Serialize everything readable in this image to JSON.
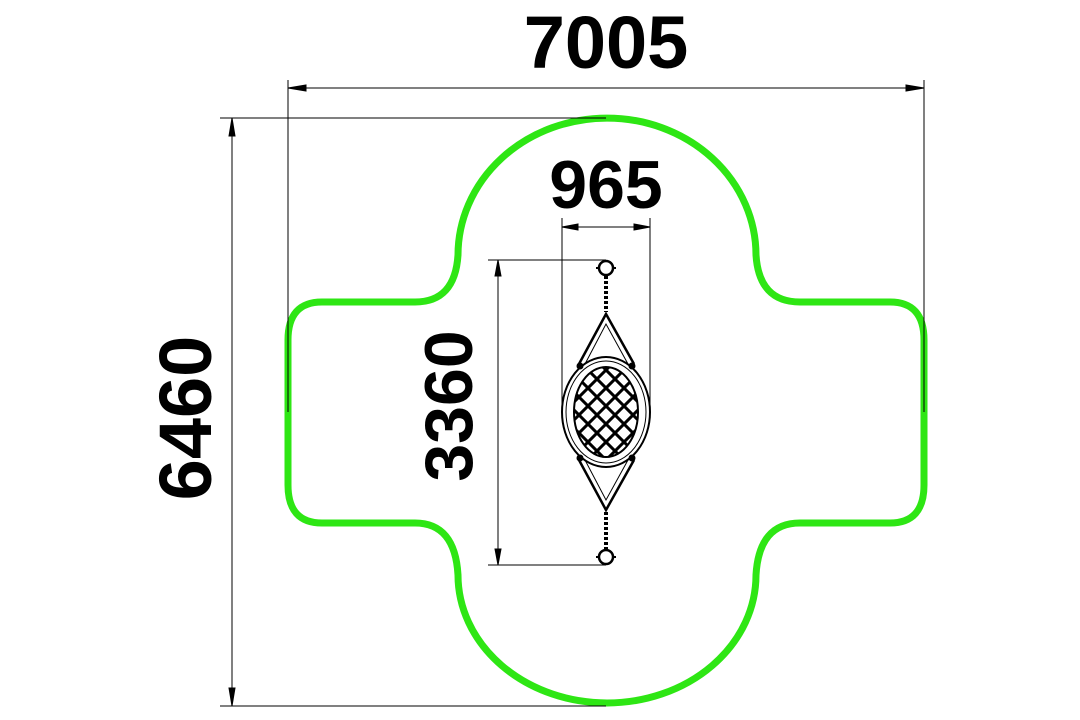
{
  "dimensions": {
    "overall_width": "7005",
    "overall_height": "6460",
    "seat_width": "965",
    "seat_length": "3360"
  },
  "colors": {
    "safety_zone": "#2ee614",
    "lines": "#000000",
    "background": "#ffffff"
  }
}
